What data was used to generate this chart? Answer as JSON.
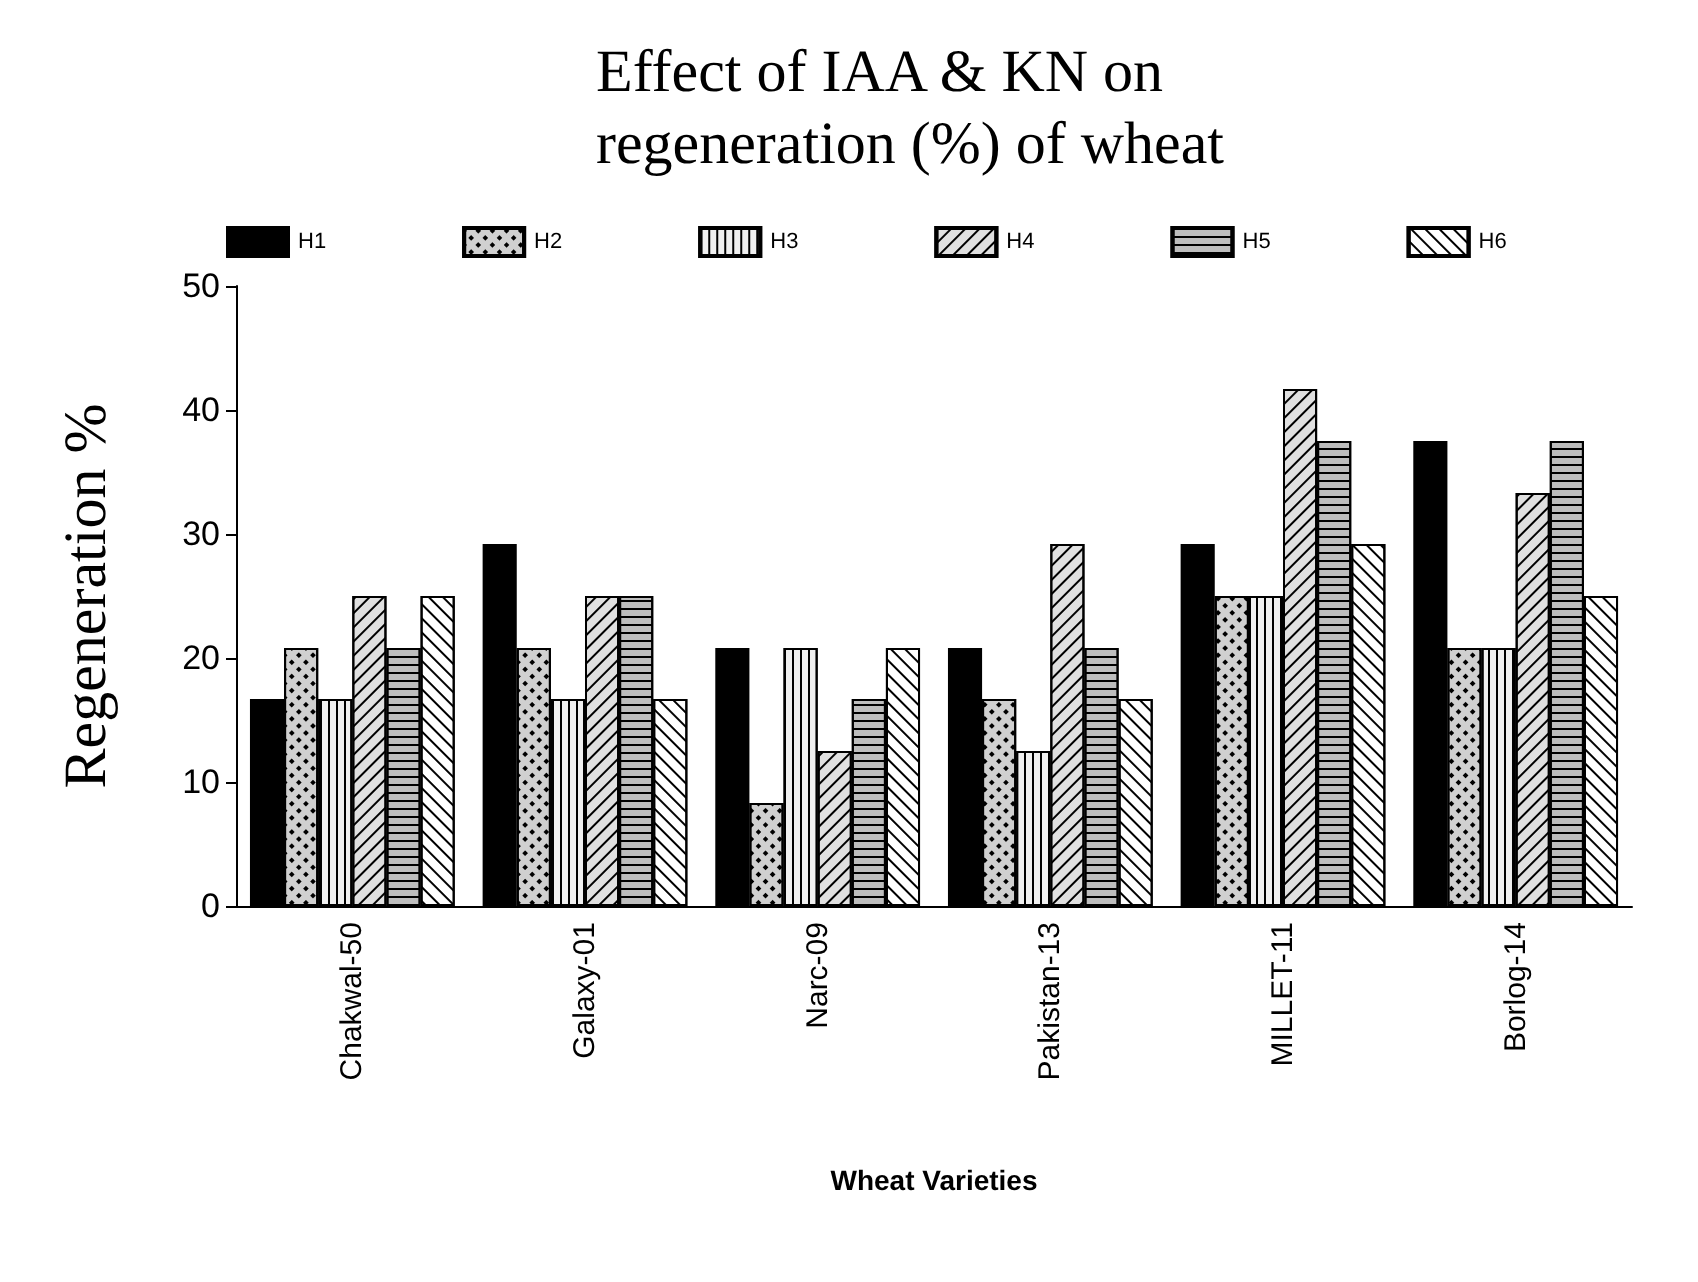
{
  "chart_data": {
    "type": "bar",
    "title": "Effect of IAA & KN on\nregeneration (%) of wheat",
    "xlabel": "Wheat Varieties",
    "ylabel": "Regeneration %",
    "categories": [
      "Chakwal-50",
      "Galaxy-01",
      "Narc-09",
      "Pakistan-13",
      "MILLET-11",
      "Borlog-14"
    ],
    "series": [
      {
        "name": "H1",
        "color": "#000000",
        "values": [
          16.7,
          29.2,
          20.8,
          20.8,
          29.2,
          37.5
        ]
      },
      {
        "name": "H2",
        "color": "#d0d0d0",
        "values": [
          20.8,
          20.8,
          8.3,
          16.7,
          25,
          20.8
        ]
      },
      {
        "name": "H3",
        "color": "#f0f0f0",
        "values": [
          16.7,
          16.7,
          20.8,
          12.5,
          25,
          20.8
        ]
      },
      {
        "name": "H4",
        "color": "#e0e0e0",
        "values": [
          25,
          25,
          12.5,
          29.2,
          41.7,
          33.3
        ]
      },
      {
        "name": "H5",
        "color": "#bdbdbd",
        "values": [
          20.8,
          25,
          16.7,
          20.8,
          37.5,
          37.5
        ]
      },
      {
        "name": "H6",
        "color": "#ffffff",
        "values": [
          25,
          16.7,
          20.8,
          16.7,
          29.2,
          25
        ]
      }
    ],
    "ylim": [
      0,
      50
    ],
    "yticks": [
      0,
      10,
      20,
      30,
      40,
      50
    ],
    "grid": false,
    "legend": "top"
  }
}
